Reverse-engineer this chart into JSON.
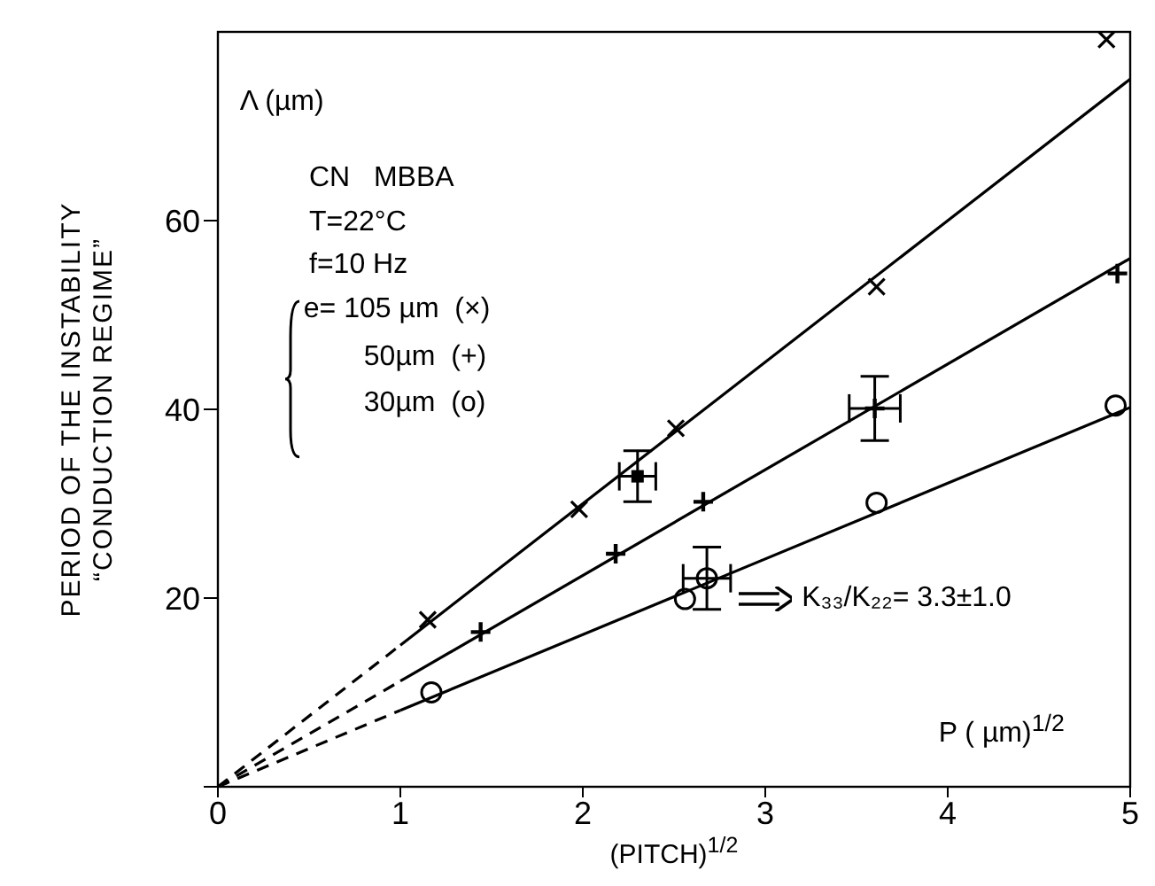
{
  "chart_data": {
    "type": "scatter",
    "xlabel": "(PITCH)$^{1/2}$",
    "ylabel": "PERIOD OF THE INSTABILITY\n“CONDUCTION REGIME”",
    "xlim": [
      0,
      5
    ],
    "xticks": [
      0,
      1,
      2,
      3,
      4,
      5
    ],
    "ylim": [
      0,
      80
    ],
    "yticks": [
      {
        "value": 0,
        "label": null
      },
      20,
      40,
      60
    ],
    "annotations": [
      "Λ (µm)",
      "CN   MBBA",
      "T=22°C",
      "f=10 Hz",
      "e= 105 µm  (×)",
      "50µm  (+)",
      "30µm  (o)",
      "K₃₃/K₂₂= 3.3±1.0",
      "P ( µm)$^{1/2}$"
    ],
    "series": [
      {
        "marker": "x",
        "color": "#000000",
        "x": [
          1.15,
          1.98,
          2.51,
          3.61,
          4.87
        ],
        "values": [
          17.7,
          29.4,
          38.0,
          53.0,
          79.2
        ]
      },
      {
        "marker": "square",
        "color": "#000000",
        "x": [
          2.3
        ],
        "values": [
          32.9
        ],
        "errors": [
          2.7
        ],
        "xerrors": [
          0.1
        ]
      },
      {
        "marker": "cross",
        "color": "#000000",
        "x": [
          1.44,
          2.18,
          2.66,
          3.6,
          4.93
        ],
        "values": [
          16.4,
          24.7,
          30.2,
          40.1,
          54.4
        ],
        "errors": [
          null,
          null,
          null,
          3.4,
          null
        ],
        "xerrors": [
          null,
          null,
          null,
          0.14,
          null
        ]
      },
      {
        "marker": "circle",
        "color": "#000000",
        "x": [
          1.17,
          2.56,
          2.68,
          3.61,
          4.92
        ],
        "values": [
          10.0,
          19.9,
          22.1,
          30.1,
          40.4
        ],
        "errors": [
          null,
          null,
          3.3,
          null,
          null
        ],
        "xerrors": [
          null,
          null,
          0.13,
          null,
          null
        ]
      },
      {
        "type": "line",
        "line_style": "dashed",
        "marker": "none",
        "color": "#000000",
        "x": [
          0,
          1
        ],
        "values": [
          0,
          15
        ]
      },
      {
        "type": "line",
        "line_style": "solid",
        "marker": "none",
        "color": "#000000",
        "x": [
          1,
          5
        ],
        "values": [
          15,
          75
        ]
      },
      {
        "type": "line",
        "line_style": "dashed",
        "marker": "none",
        "color": "#000000",
        "x": [
          0,
          1
        ],
        "values": [
          0,
          11.2
        ]
      },
      {
        "type": "line",
        "line_style": "solid",
        "marker": "none",
        "color": "#000000",
        "x": [
          1,
          5
        ],
        "values": [
          11.2,
          56
        ]
      },
      {
        "type": "line",
        "line_style": "dashed",
        "marker": "none",
        "color": "#000000",
        "x": [
          0,
          1
        ],
        "values": [
          0,
          8.1
        ]
      },
      {
        "type": "line",
        "line_style": "solid",
        "marker": "none",
        "color": "#000000",
        "x": [
          1,
          5
        ],
        "values": [
          8.1,
          40.2
        ]
      }
    ]
  }
}
